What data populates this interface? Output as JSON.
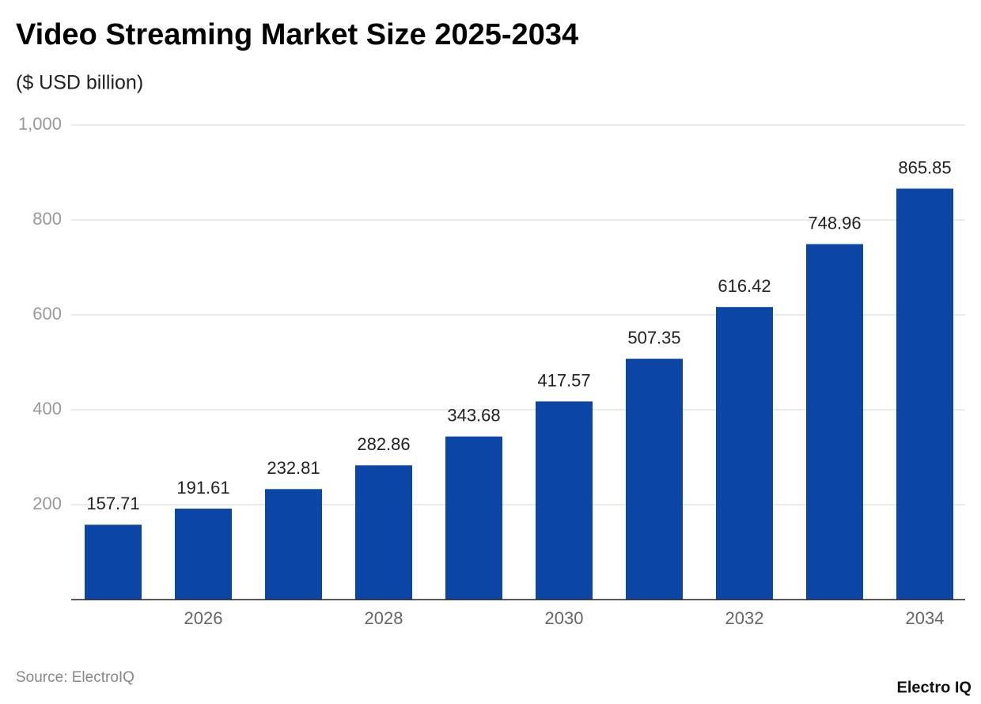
{
  "chart_data": {
    "type": "bar",
    "title": "Video Streaming Market Size 2025-2034",
    "subtitle": "($ USD billion)",
    "categories": [
      null,
      "2026",
      null,
      "2028",
      null,
      "2030",
      null,
      "2032",
      null,
      "2034"
    ],
    "values": [
      157.71,
      191.61,
      232.81,
      282.86,
      343.68,
      417.57,
      507.35,
      616.42,
      748.96,
      865.85
    ],
    "color": "#0b45a6",
    "ylim": [
      0,
      1000
    ],
    "yticks": [
      200,
      400,
      600,
      800,
      {
        "value": 1000,
        "label": "1,000"
      }
    ],
    "grid": true,
    "source": "Source: ElectroIQ",
    "brand": "Electro IQ"
  }
}
